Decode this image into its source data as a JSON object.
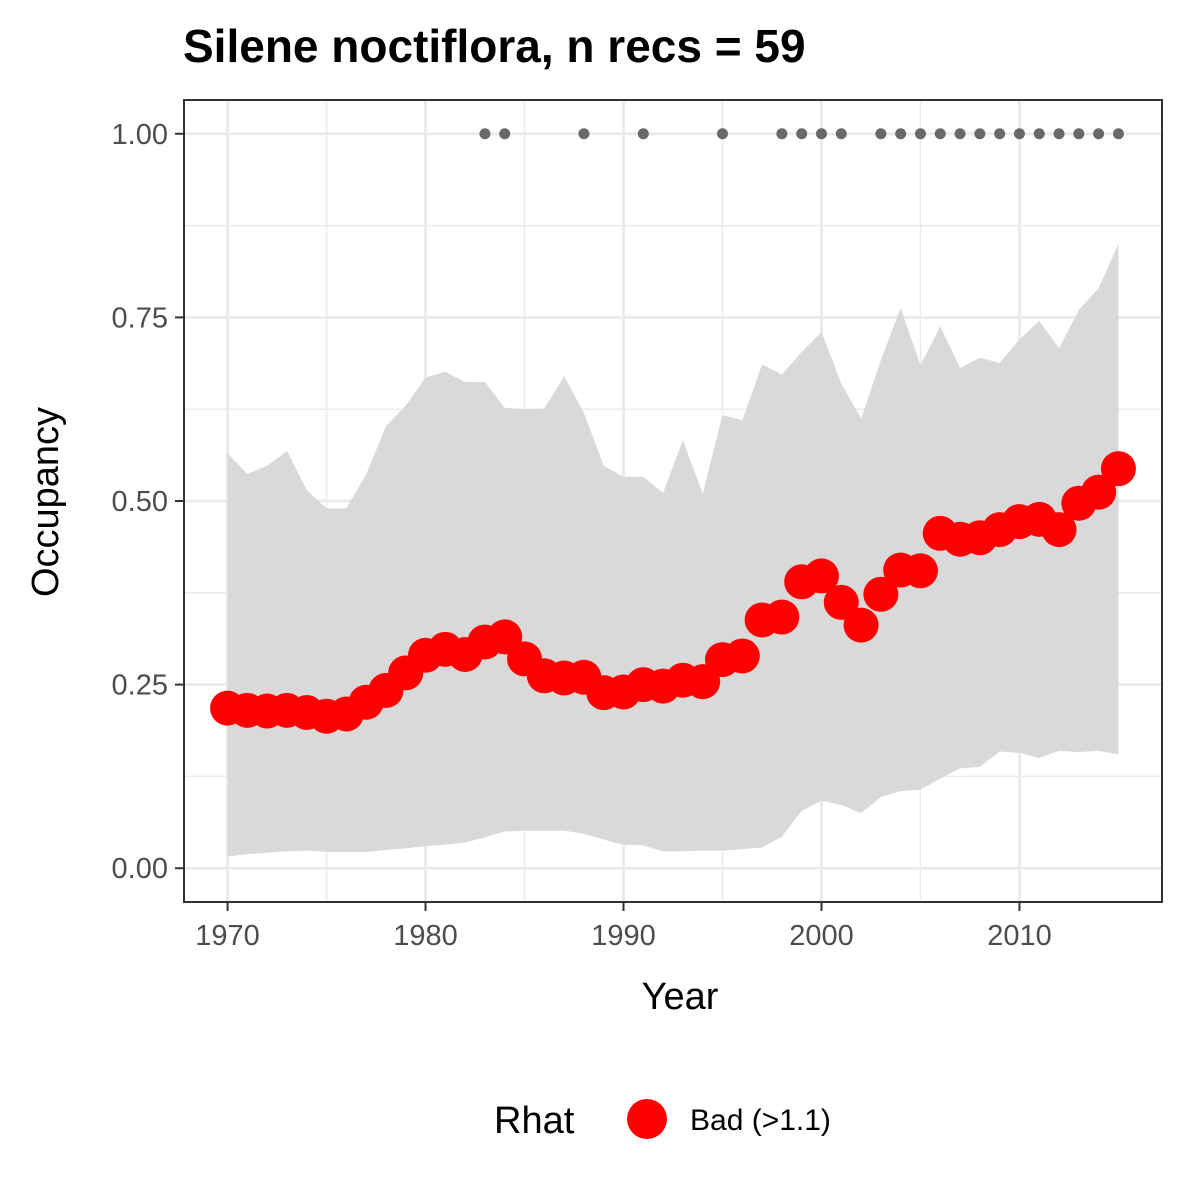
{
  "chart_data": {
    "type": "line",
    "title": "Silene noctiflora, n recs = 59",
    "xlabel": "Year",
    "ylabel": "Occupancy",
    "xlim": [
      1967.8,
      2017.2
    ],
    "ylim": [
      -0.046,
      1.046
    ],
    "x_ticks": [
      1970,
      1980,
      1990,
      2000,
      2010
    ],
    "x_tick_labels": [
      "1970",
      "1980",
      "1990",
      "2000",
      "2010"
    ],
    "y_ticks": [
      0,
      0.25,
      0.5,
      0.75,
      1.0
    ],
    "y_tick_labels": [
      "0.00",
      "0.25",
      "0.50",
      "0.75",
      "1.00"
    ],
    "grid": true,
    "years": [
      1970,
      1971,
      1972,
      1973,
      1974,
      1975,
      1976,
      1977,
      1978,
      1979,
      1980,
      1981,
      1982,
      1983,
      1984,
      1985,
      1986,
      1987,
      1988,
      1989,
      1990,
      1991,
      1992,
      1993,
      1994,
      1995,
      1996,
      1997,
      1998,
      1999,
      2000,
      2001,
      2002,
      2003,
      2004,
      2005,
      2006,
      2007,
      2008,
      2009,
      2010,
      2011,
      2012,
      2013,
      2014,
      2015
    ],
    "series": [
      {
        "name": "Bad (>1.1)",
        "color": "#ff0000",
        "values": [
          0.218,
          0.215,
          0.214,
          0.215,
          0.212,
          0.207,
          0.21,
          0.226,
          0.242,
          0.266,
          0.29,
          0.298,
          0.291,
          0.308,
          0.315,
          0.285,
          0.262,
          0.259,
          0.26,
          0.239,
          0.24,
          0.25,
          0.248,
          0.256,
          0.254,
          0.284,
          0.289,
          0.338,
          0.342,
          0.39,
          0.398,
          0.362,
          0.331,
          0.373,
          0.406,
          0.405,
          0.456,
          0.448,
          0.45,
          0.461,
          0.472,
          0.475,
          0.461,
          0.497,
          0.512,
          0.544
        ]
      }
    ],
    "credible_interval": {
      "color": "#d9d9d9",
      "lower": [
        0.016,
        0.019,
        0.021,
        0.023,
        0.024,
        0.022,
        0.022,
        0.022,
        0.025,
        0.027,
        0.03,
        0.032,
        0.035,
        0.042,
        0.05,
        0.051,
        0.051,
        0.051,
        0.047,
        0.039,
        0.032,
        0.031,
        0.023,
        0.023,
        0.024,
        0.024,
        0.026,
        0.028,
        0.043,
        0.078,
        0.092,
        0.086,
        0.075,
        0.097,
        0.105,
        0.107,
        0.122,
        0.136,
        0.138,
        0.159,
        0.157,
        0.15,
        0.16,
        0.158,
        0.16,
        0.155
      ],
      "upper": [
        0.565,
        0.537,
        0.548,
        0.568,
        0.515,
        0.49,
        0.49,
        0.536,
        0.602,
        0.63,
        0.668,
        0.676,
        0.662,
        0.662,
        0.627,
        0.625,
        0.626,
        0.67,
        0.62,
        0.548,
        0.533,
        0.533,
        0.511,
        0.583,
        0.51,
        0.617,
        0.61,
        0.686,
        0.672,
        0.703,
        0.73,
        0.66,
        0.612,
        0.692,
        0.763,
        0.685,
        0.738,
        0.681,
        0.695,
        0.688,
        0.72,
        0.745,
        0.708,
        0.76,
        0.79,
        0.85
      ]
    },
    "record_years": [
      1983,
      1984,
      1988,
      1991,
      1995,
      1998,
      1999,
      2000,
      2001,
      2003,
      2004,
      2005,
      2006,
      2007,
      2008,
      2009,
      2010,
      2011,
      2012,
      2013,
      2014,
      2015
    ],
    "record_y": 1.0,
    "record_color": "#696969",
    "legend": {
      "title": "Rhat",
      "label": "Bad (>1.1)",
      "position": "bottom"
    }
  }
}
